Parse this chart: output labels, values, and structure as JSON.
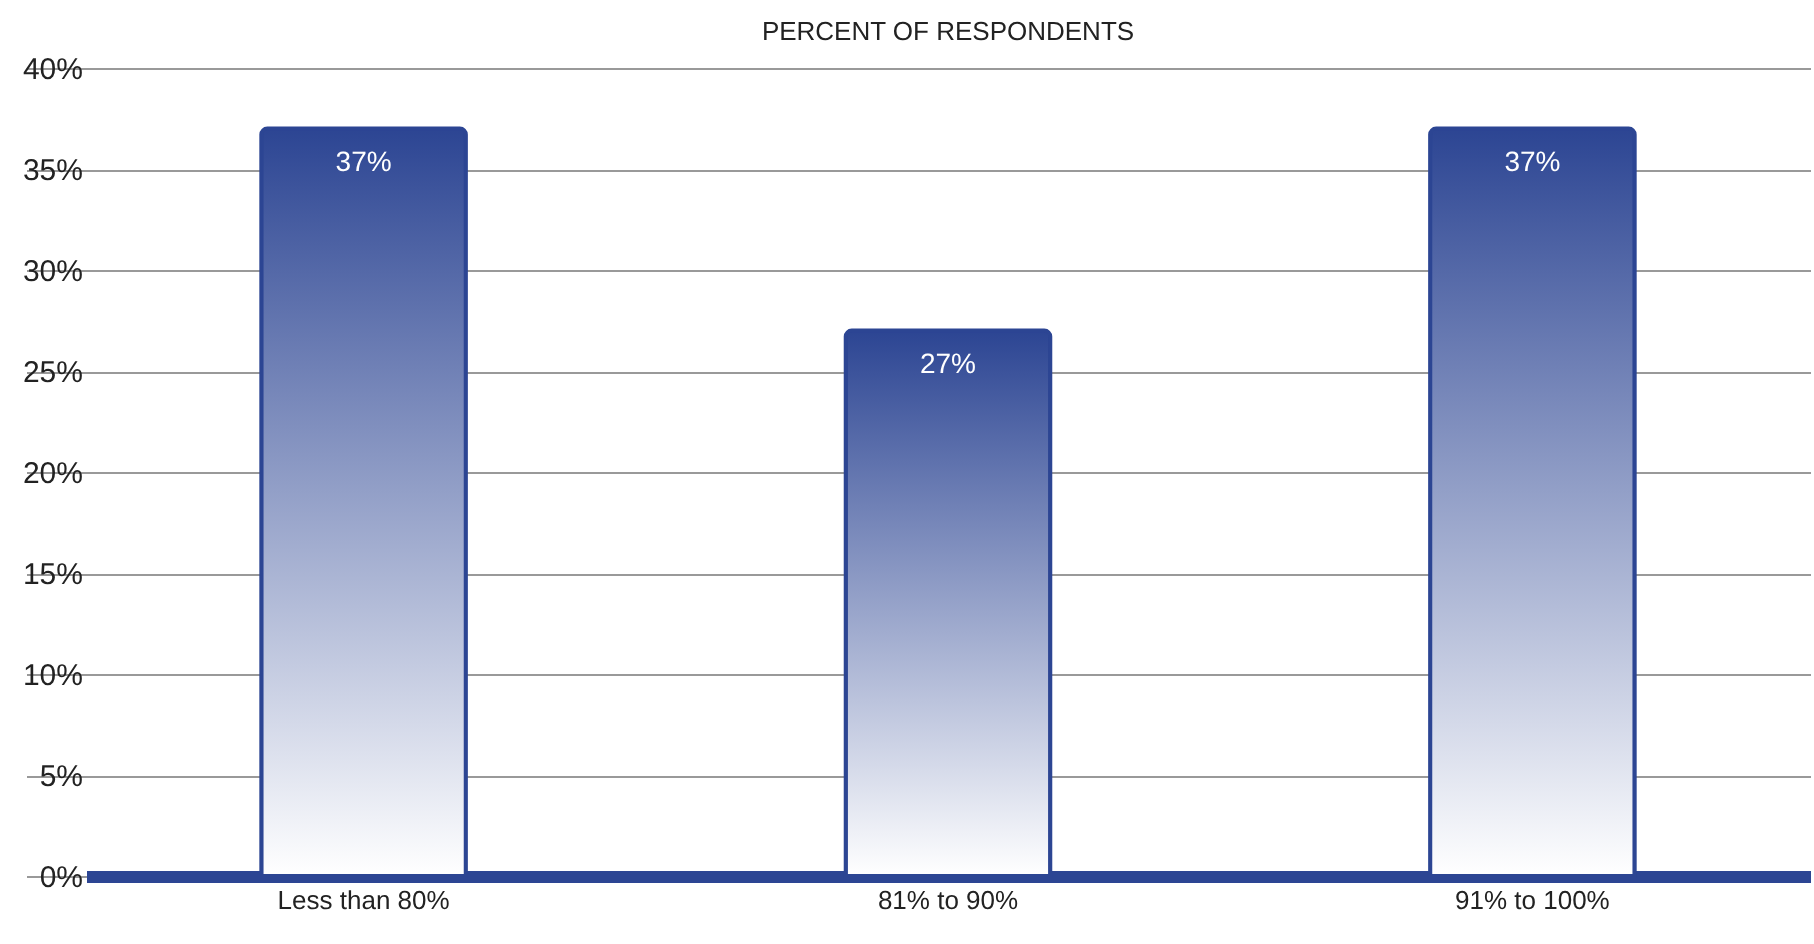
{
  "chart_data": {
    "type": "bar",
    "title": "PERCENT OF RESPONDENTS",
    "categories": [
      "Less than 80%",
      "81% to 90%",
      "91% to 100%"
    ],
    "values": [
      37,
      27,
      37
    ],
    "value_labels": [
      "37%",
      "27%",
      "37%"
    ],
    "color": "#2c4593",
    "ylim": [
      0,
      40
    ],
    "yticks": [
      {
        "value": 0,
        "label": "0%"
      },
      {
        "value": 5,
        "label": "5%"
      },
      {
        "value": 10,
        "label": "10%"
      },
      {
        "value": 15,
        "label": "15%"
      },
      {
        "value": 20,
        "label": "20%"
      },
      {
        "value": 25,
        "label": "25%"
      },
      {
        "value": 30,
        "label": "30%"
      },
      {
        "value": 35,
        "label": "35%"
      },
      {
        "value": 40,
        "label": "40%"
      }
    ],
    "grid": "y"
  }
}
